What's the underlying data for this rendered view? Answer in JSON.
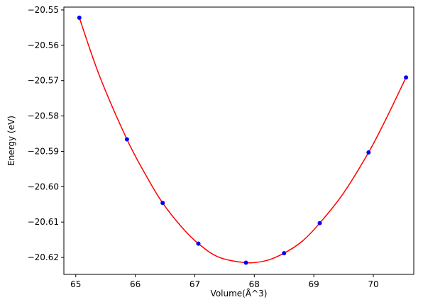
{
  "chart_data": {
    "type": "scatter",
    "title": "",
    "xlabel": "Volume(Å^3)",
    "ylabel": "Energy (eV)",
    "xlim": [
      64.8,
      70.68
    ],
    "ylim": [
      -20.6248,
      -20.5492
    ],
    "xticks": [
      65,
      66,
      67,
      68,
      69,
      70
    ],
    "yticks": [
      -20.62,
      -20.61,
      -20.6,
      -20.59,
      -20.58,
      -20.57,
      -20.56,
      -20.55
    ],
    "xtick_labels": [
      "65",
      "66",
      "67",
      "68",
      "69",
      "70"
    ],
    "ytick_labels": [
      "−20.62",
      "−20.61",
      "−20.60",
      "−20.59",
      "−20.58",
      "−20.57",
      "−20.56",
      "−20.55"
    ],
    "grid": false,
    "legend": "none",
    "series": [
      {
        "kind": "points",
        "color": "#0000ff",
        "x": [
          65.06,
          65.86,
          66.46,
          67.06,
          67.86,
          68.5,
          69.1,
          69.92,
          70.55
        ],
        "y": [
          -20.5522,
          -20.5866,
          -20.6046,
          -20.6161,
          -20.6215,
          -20.6188,
          -20.6103,
          -20.5903,
          -20.5691
        ]
      },
      {
        "kind": "fit-curve",
        "color": "#ff0000",
        "x": [
          65.06,
          65.4,
          65.86,
          66.2,
          66.46,
          66.8,
          67.06,
          67.4,
          67.86,
          68.2,
          68.5,
          68.8,
          69.1,
          69.5,
          69.92,
          70.2,
          70.55
        ],
        "y": [
          -20.5522,
          -20.5687,
          -20.5866,
          -20.5974,
          -20.6046,
          -20.6118,
          -20.6161,
          -20.6199,
          -20.6215,
          -20.6209,
          -20.6188,
          -20.6155,
          -20.6103,
          -20.6018,
          -20.5903,
          -20.5813,
          -20.5691
        ]
      }
    ]
  }
}
